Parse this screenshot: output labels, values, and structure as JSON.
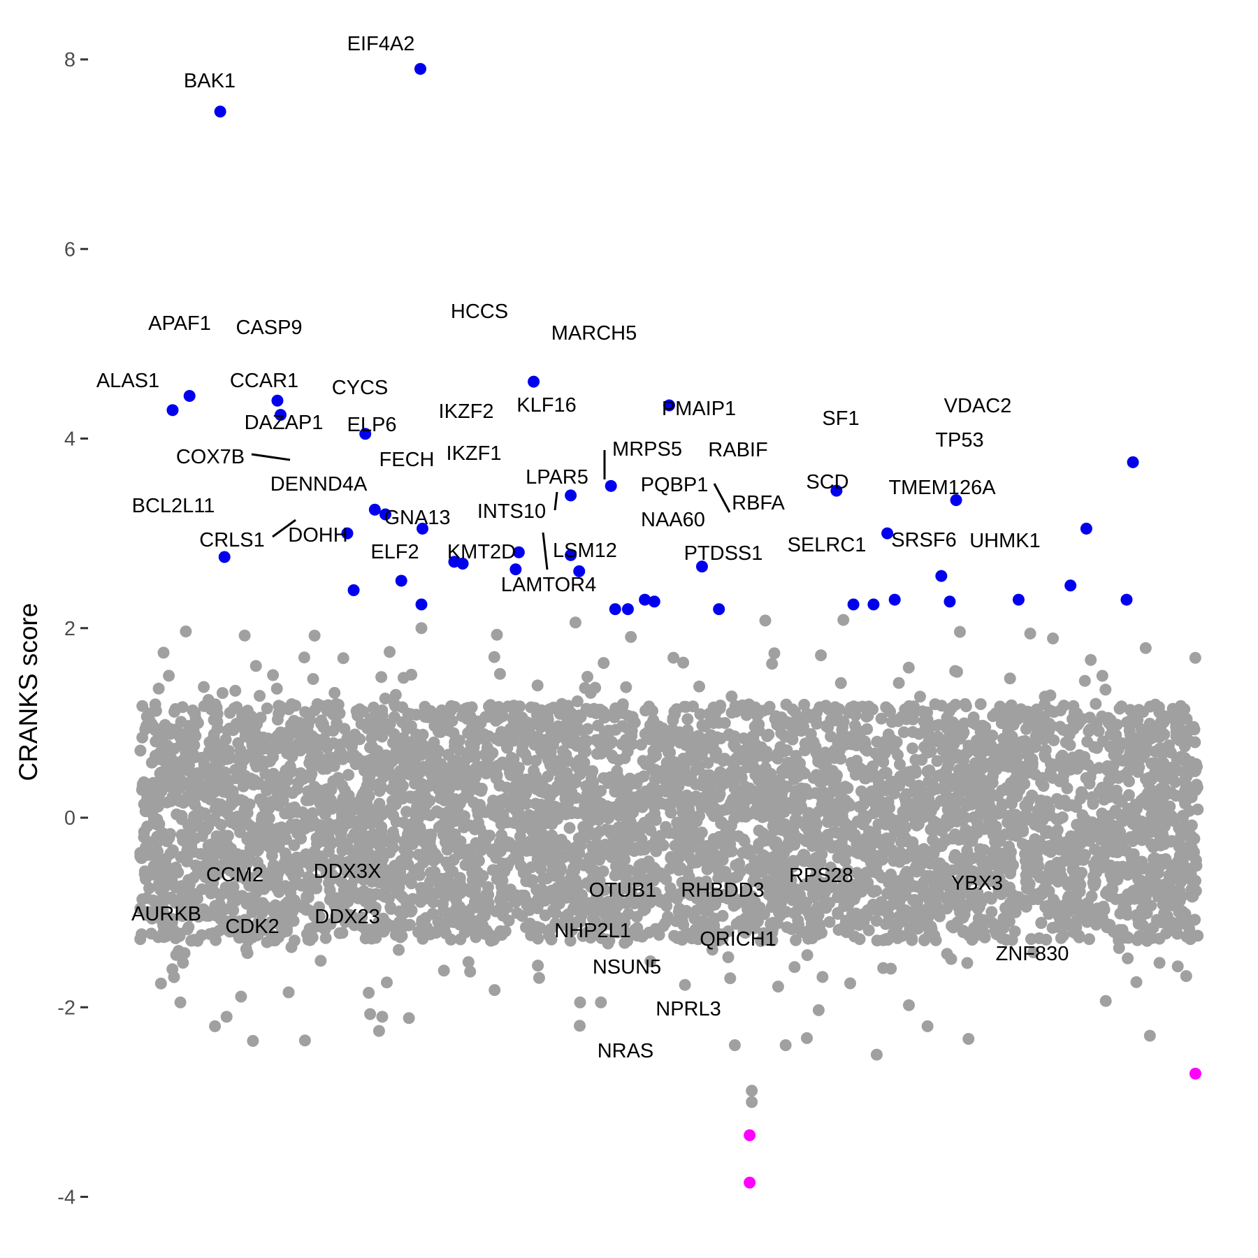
{
  "chart_data": {
    "type": "scatter",
    "title": "",
    "xlabel": "",
    "ylabel": "CRANKS score",
    "ylim": [
      -4.3,
      8.5
    ],
    "y_ticks": [
      -4,
      -2,
      0,
      2,
      4,
      6,
      8
    ],
    "x_axis_shown": false,
    "grid": false,
    "legend": "none",
    "colors": {
      "background": "#a0a0a0",
      "positive_hit": "#0000ee",
      "negative_hit": "#ff00ff",
      "label": "#000000"
    },
    "background_points": {
      "description_note": "",
      "count_approx": 18000,
      "y_core_range": [
        -1.3,
        1.2
      ],
      "y_spread_range": [
        -2.4,
        2.1
      ]
    },
    "highlighted_points": [
      {
        "label": "EIF4A2",
        "x": 0.265,
        "y": 7.9,
        "group": "positive"
      },
      {
        "label": "BAK1",
        "x": 0.076,
        "y": 7.45,
        "group": "positive"
      },
      {
        "label": "HCCS",
        "x": 0.372,
        "y": 4.6,
        "group": "positive"
      },
      {
        "label": "APAF1",
        "x": 0.047,
        "y": 4.45,
        "group": "positive"
      },
      {
        "label": "CASP9",
        "x": 0.13,
        "y": 4.4,
        "group": "positive"
      },
      {
        "label": "MARCH5",
        "x": 0.5,
        "y": 4.35,
        "group": "positive"
      },
      {
        "label": "ALAS1",
        "x": 0.031,
        "y": 4.3,
        "group": "positive"
      },
      {
        "label": "CCAR1",
        "x": 0.133,
        "y": 4.25,
        "group": "positive"
      },
      {
        "label": "CYCS",
        "x": 0.213,
        "y": 4.05,
        "group": "positive"
      },
      {
        "label": "VDAC2",
        "x": 0.938,
        "y": 3.75,
        "group": "positive"
      },
      {
        "label": "KLF16",
        "x": 0.445,
        "y": 3.5,
        "group": "positive"
      },
      {
        "label": "PMAIP1",
        "x": 0.658,
        "y": 3.45,
        "group": "positive"
      },
      {
        "label": "IKZF2",
        "x": 0.407,
        "y": 3.4,
        "group": "positive"
      },
      {
        "label": "SF1",
        "x": 0.771,
        "y": 3.35,
        "group": "positive"
      },
      {
        "label": "DAZAP1",
        "x": 0.222,
        "y": 3.25,
        "group": "positive"
      },
      {
        "label": "ELP6",
        "x": 0.232,
        "y": 3.2,
        "group": "positive"
      },
      {
        "label": "FECH",
        "x": 0.267,
        "y": 3.05,
        "group": "positive"
      },
      {
        "label": "TP53",
        "x": 0.894,
        "y": 3.05,
        "group": "positive"
      },
      {
        "label": "COX7B",
        "x": 0.196,
        "y": 3.0,
        "group": "positive"
      },
      {
        "label": "RABIF",
        "x": 0.706,
        "y": 3.0,
        "group": "positive"
      },
      {
        "label": "IKZF1",
        "x": 0.358,
        "y": 2.8,
        "group": "positive"
      },
      {
        "label": "BCL2L11",
        "x": 0.08,
        "y": 2.75,
        "group": "positive"
      },
      {
        "label": "GNA13",
        "x": 0.297,
        "y": 2.7,
        "group": "positive"
      },
      {
        "label": "",
        "x": 0.305,
        "y": 2.68,
        "group": "positive"
      },
      {
        "label": "",
        "x": 0.407,
        "y": 2.77,
        "group": "positive"
      },
      {
        "label": "MRPS5",
        "x": 0.531,
        "y": 2.65,
        "group": "positive"
      },
      {
        "label": "INTS10",
        "x": 0.415,
        "y": 2.6,
        "group": "positive"
      },
      {
        "label": "",
        "x": 0.355,
        "y": 2.62,
        "group": "positive"
      },
      {
        "label": "SCD",
        "x": 0.757,
        "y": 2.55,
        "group": "positive"
      },
      {
        "label": "DENND4A",
        "x": 0.247,
        "y": 2.5,
        "group": "positive"
      },
      {
        "label": "TMEM126A",
        "x": 0.879,
        "y": 2.45,
        "group": "positive"
      },
      {
        "label": "CRLS1",
        "x": 0.202,
        "y": 2.4,
        "group": "positive"
      },
      {
        "label": "UHMK1",
        "x": 0.932,
        "y": 2.3,
        "group": "positive"
      },
      {
        "label": "SRSF6",
        "x": 0.83,
        "y": 2.3,
        "group": "positive"
      },
      {
        "label": "RBFA",
        "x": 0.713,
        "y": 2.3,
        "group": "positive"
      },
      {
        "label": "LPAR5",
        "x": 0.477,
        "y": 2.3,
        "group": "positive"
      },
      {
        "label": "LSM12",
        "x": 0.486,
        "y": 2.28,
        "group": "positive"
      },
      {
        "label": "SELRC1",
        "x": 0.765,
        "y": 2.28,
        "group": "positive"
      },
      {
        "label": "PQBP1",
        "x": 0.674,
        "y": 2.25,
        "group": "positive"
      },
      {
        "label": "PTDSS1",
        "x": 0.693,
        "y": 2.25,
        "group": "positive"
      },
      {
        "label": "DOHH",
        "x": 0.266,
        "y": 2.25,
        "group": "positive"
      },
      {
        "label": "NAA60",
        "x": 0.547,
        "y": 2.2,
        "group": "positive"
      },
      {
        "label": "KMT2D",
        "x": 0.449,
        "y": 2.2,
        "group": "positive"
      },
      {
        "label": "LAMTOR4",
        "x": 0.461,
        "y": 2.2,
        "group": "positive"
      },
      {
        "label": "ZNF830",
        "x": 0.997,
        "y": -2.7,
        "group": "negative"
      },
      {
        "label": "NSUN5",
        "x": 0.576,
        "y": -3.35,
        "group": "negative"
      },
      {
        "label": "NRAS",
        "x": 0.576,
        "y": -3.85,
        "group": "negative"
      }
    ],
    "labelled_background_points": [
      {
        "label": "ELF2",
        "x": 0.266,
        "y": 2.0
      },
      {
        "label": "AURKB",
        "x": 0.071,
        "y": -2.2
      },
      {
        "label": "CCM2",
        "x": 0.082,
        "y": -2.1
      },
      {
        "label": "CDK2",
        "x": 0.156,
        "y": -2.35
      },
      {
        "label": "DDX3X",
        "x": 0.229,
        "y": -2.1
      },
      {
        "label": "DDX23",
        "x": 0.226,
        "y": -2.25
      },
      {
        "label": "OTUB1",
        "x": 0.562,
        "y": -2.4
      },
      {
        "label": "NHP2L1",
        "x": 0.578,
        "y": -2.88
      },
      {
        "label": "NPRL3",
        "x": 0.578,
        "y": -3.0
      },
      {
        "label": "RHBDD3",
        "x": 0.61,
        "y": -2.4
      },
      {
        "label": "QRICH1",
        "x": 0.696,
        "y": -2.5
      },
      {
        "label": "RPS28",
        "x": 0.744,
        "y": -2.2
      },
      {
        "label": "YBX3",
        "x": 0.954,
        "y": -2.3
      }
    ],
    "annotations": [
      {
        "text": "EIF4A2"
      },
      {
        "text": "BAK1"
      },
      {
        "text": "HCCS"
      },
      {
        "text": "APAF1"
      },
      {
        "text": "CASP9"
      },
      {
        "text": "MARCH5"
      },
      {
        "text": "ALAS1"
      },
      {
        "text": "CCAR1"
      },
      {
        "text": "CYCS"
      },
      {
        "text": "VDAC2"
      },
      {
        "text": "PMAIP1"
      },
      {
        "text": "KLF16"
      },
      {
        "text": "IKZF2"
      },
      {
        "text": "SF1"
      },
      {
        "text": "DAZAP1"
      },
      {
        "text": "ELP6"
      },
      {
        "text": "TP53"
      },
      {
        "text": "COX7B"
      },
      {
        "text": "FECH"
      },
      {
        "text": "RABIF"
      },
      {
        "text": "MRPS5"
      },
      {
        "text": "IKZF1"
      },
      {
        "text": "LPAR5"
      },
      {
        "text": "SCD"
      },
      {
        "text": "PQBP1"
      },
      {
        "text": "TMEM126A"
      },
      {
        "text": "DENND4A"
      },
      {
        "text": "RBFA"
      },
      {
        "text": "BCL2L11"
      },
      {
        "text": "GNA13"
      },
      {
        "text": "INTS10"
      },
      {
        "text": "NAA60"
      },
      {
        "text": "CRLS1"
      },
      {
        "text": "DOHH"
      },
      {
        "text": "SRSF6"
      },
      {
        "text": "UHMK1"
      },
      {
        "text": "SELRC1"
      },
      {
        "text": "PTDSS1"
      },
      {
        "text": "LSM12"
      },
      {
        "text": "ELF2"
      },
      {
        "text": "KMT2D"
      },
      {
        "text": "LAMTOR4"
      },
      {
        "text": "CCM2"
      },
      {
        "text": "DDX3X"
      },
      {
        "text": "RPS28"
      },
      {
        "text": "OTUB1"
      },
      {
        "text": "RHBDD3"
      },
      {
        "text": "YBX3"
      },
      {
        "text": "AURKB"
      },
      {
        "text": "CDK2"
      },
      {
        "text": "DDX23"
      },
      {
        "text": "NHP2L1"
      },
      {
        "text": "QRICH1"
      },
      {
        "text": "ZNF830"
      },
      {
        "text": "NSUN5"
      },
      {
        "text": "NPRL3"
      },
      {
        "text": "NRAS"
      }
    ]
  }
}
